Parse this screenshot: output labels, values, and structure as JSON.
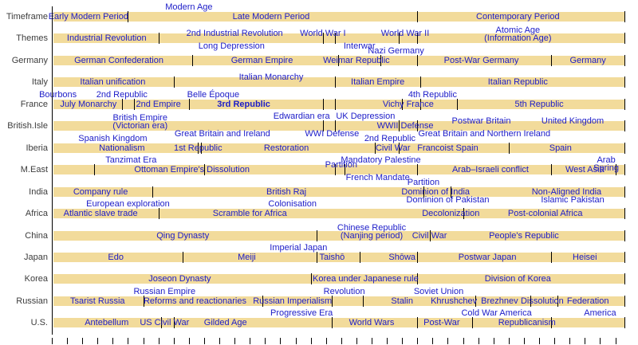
{
  "colors": {
    "bar_fill": "#f2db9b",
    "period_text": "#1c1cc8",
    "row_label_text": "#3c3c3c",
    "tick": "#000000",
    "background": "#ffffff"
  },
  "chart_data": {
    "type": "timeline",
    "title": "",
    "x_axis": {
      "min": 1825,
      "max": 2013,
      "major_tick_years": [
        1825,
        1850,
        1875,
        1900,
        1925,
        1950,
        1975,
        2000
      ],
      "minor_tick_step": 5
    },
    "rows": [
      {
        "label": "Timeframe",
        "ticks": [
          1850,
          1945,
          2013
        ],
        "periods": [
          {
            "text": "Early Modern Period",
            "year": 1837,
            "pos": "in"
          },
          {
            "text": "Modern Age",
            "year": 1870,
            "pos": "above"
          },
          {
            "text": "Late Modern Period",
            "year": 1897,
            "pos": "in"
          },
          {
            "text": "Contemporary Period",
            "year": 1978,
            "pos": "in"
          }
        ]
      },
      {
        "label": "Themes",
        "ticks": [
          1860,
          1914,
          1918,
          1939,
          1945,
          2013
        ],
        "periods": [
          {
            "text": "Industrial Revolution",
            "year": 1843,
            "pos": "in"
          },
          {
            "text": "2nd Industrial Revolution",
            "year": 1885,
            "pos": "top"
          },
          {
            "text": "Long Depression",
            "year": 1884,
            "pos": "below"
          },
          {
            "text": "World War I",
            "year": 1914,
            "pos": "top"
          },
          {
            "text": "Interwar",
            "year": 1926,
            "pos": "below"
          },
          {
            "text": "World War II",
            "year": 1941,
            "pos": "top"
          },
          {
            "text": "Atomic Age\n(Information Age)",
            "year": 1978,
            "pos": "top2"
          }
        ]
      },
      {
        "label": "Germany",
        "ticks": [
          1871,
          1919,
          1933,
          1945,
          1989,
          2013
        ],
        "periods": [
          {
            "text": "German Confederation",
            "year": 1847,
            "pos": "in"
          },
          {
            "text": "German Empire",
            "year": 1894,
            "pos": "in"
          },
          {
            "text": "Nazi Germany",
            "year": 1938,
            "pos": "above"
          },
          {
            "text": "Weimar Republic",
            "year": 1925,
            "pos": "in"
          },
          {
            "text": "Post-War Germany",
            "year": 1966,
            "pos": "in"
          },
          {
            "text": "Germany",
            "year": 2001,
            "pos": "in"
          }
        ]
      },
      {
        "label": "Italy",
        "ticks": [
          1865,
          1918,
          1946,
          2013
        ],
        "periods": [
          {
            "text": "Italian unification",
            "year": 1845,
            "pos": "in"
          },
          {
            "text": "Italian Monarchy",
            "year": 1897,
            "pos": "top"
          },
          {
            "text": "Italian Empire",
            "year": 1932,
            "pos": "in"
          },
          {
            "text": "Italian Republic",
            "year": 1978,
            "pos": "in"
          }
        ]
      },
      {
        "label": "France",
        "ticks": [
          1848,
          1852,
          1870,
          1914,
          1918,
          1940,
          1946,
          1958,
          2013
        ],
        "periods": [
          {
            "text": "Bourbons",
            "year": 1827,
            "pos": "above"
          },
          {
            "text": "July Monarchy",
            "year": 1837,
            "pos": "in"
          },
          {
            "text": "2nd Republic",
            "year": 1848,
            "pos": "above"
          },
          {
            "text": "2nd Empire",
            "year": 1860,
            "pos": "in"
          },
          {
            "text": "Belle Époque",
            "year": 1878,
            "pos": "above"
          },
          {
            "text": "3rd Republic",
            "year": 1888,
            "pos": "in",
            "bold": true
          },
          {
            "text": "Vichy France",
            "year": 1942,
            "pos": "in"
          },
          {
            "text": "4th Republic",
            "year": 1950,
            "pos": "above"
          },
          {
            "text": "5th Republic",
            "year": 1985,
            "pos": "in"
          }
        ]
      },
      {
        "label": "British.Isle",
        "ticks": [
          1914,
          1918,
          1939,
          1945,
          2013
        ],
        "periods": [
          {
            "text": "British Empire\n(Victorian era)",
            "year": 1854,
            "pos": "top2"
          },
          {
            "text": "Great Britain and Ireland",
            "year": 1881,
            "pos": "below"
          },
          {
            "text": "Edwardian era",
            "year": 1907,
            "pos": "above"
          },
          {
            "text": "WWI Defense",
            "year": 1917,
            "pos": "below"
          },
          {
            "text": "UK Depression",
            "year": 1928,
            "pos": "above"
          },
          {
            "text": "WWII Defense",
            "year": 1941,
            "pos": "in"
          },
          {
            "text": "Postwar Britain",
            "year": 1966,
            "pos": "top"
          },
          {
            "text": "Great Britain and Northern Ireland",
            "year": 1967,
            "pos": "below"
          },
          {
            "text": "United Kingdom",
            "year": 1996,
            "pos": "top"
          }
        ]
      },
      {
        "label": "Iberia",
        "ticks": [
          1873,
          1874,
          1931,
          1939,
          1975,
          2013
        ],
        "periods": [
          {
            "text": "Spanish Kingdom",
            "year": 1845,
            "pos": "above"
          },
          {
            "text": "Nationalism",
            "year": 1848,
            "pos": "in"
          },
          {
            "text": "1st Republic",
            "year": 1873,
            "pos": "in"
          },
          {
            "text": "Restoration",
            "year": 1902,
            "pos": "in"
          },
          {
            "text": "2nd Republic",
            "year": 1936,
            "pos": "above"
          },
          {
            "text": "Civil War",
            "year": 1937,
            "pos": "in"
          },
          {
            "text": "Francoist Spain",
            "year": 1955,
            "pos": "in"
          },
          {
            "text": "Spain",
            "year": 1992,
            "pos": "in"
          }
        ]
      },
      {
        "label": "M.East",
        "ticks": [
          1839,
          1875,
          1918,
          1921,
          1945,
          1989,
          2010,
          2013
        ],
        "periods": [
          {
            "text": "Tanzimat Era",
            "year": 1851,
            "pos": "above"
          },
          {
            "text": "Ottoman Empire's Dissolution",
            "year": 1871,
            "pos": "in"
          },
          {
            "text": "Partition",
            "year": 1920,
            "pos": "top"
          },
          {
            "text": "Mandatory Palestine",
            "year": 1933,
            "pos": "above"
          },
          {
            "text": "French Mandate",
            "year": 1932,
            "pos": "below"
          },
          {
            "text": "Arab–Israeli conflict",
            "year": 1969,
            "pos": "in"
          },
          {
            "text": "West Asia",
            "year": 2000,
            "pos": "in"
          },
          {
            "text": "Arab Spring",
            "year": 2007,
            "pos": "above"
          }
        ]
      },
      {
        "label": "India",
        "ticks": [
          1858,
          1947,
          1956,
          2013
        ],
        "periods": [
          {
            "text": "Company rule",
            "year": 1841,
            "pos": "in"
          },
          {
            "text": "British Raj",
            "year": 1902,
            "pos": "in"
          },
          {
            "text": "Partition",
            "year": 1947,
            "pos": "above"
          },
          {
            "text": "Dominion of India",
            "year": 1951,
            "pos": "in"
          },
          {
            "text": "Dominion of Pakistan",
            "year": 1955,
            "pos": "below"
          },
          {
            "text": "Non-Aligned India",
            "year": 1994,
            "pos": "in"
          },
          {
            "text": "Islamic Pakistan",
            "year": 1996,
            "pos": "below"
          }
        ]
      },
      {
        "label": "Africa",
        "ticks": [
          1860,
          1960,
          2013
        ],
        "periods": [
          {
            "text": "European exploration",
            "year": 1850,
            "pos": "above"
          },
          {
            "text": "Atlantic slave trade",
            "year": 1841,
            "pos": "in"
          },
          {
            "text": "Scramble for Africa",
            "year": 1890,
            "pos": "in"
          },
          {
            "text": "Colonisation",
            "year": 1904,
            "pos": "above"
          },
          {
            "text": "Decolonization",
            "year": 1956,
            "pos": "in"
          },
          {
            "text": "Post-colonial Africa",
            "year": 1987,
            "pos": "in"
          }
        ]
      },
      {
        "label": "China",
        "ticks": [
          1912,
          1949,
          2013
        ],
        "periods": [
          {
            "text": "Qing Dynasty",
            "year": 1868,
            "pos": "in"
          },
          {
            "text": "Chinese Republic\n(Nanjing period)",
            "year": 1930,
            "pos": "top2"
          },
          {
            "text": "Civil War",
            "year": 1949,
            "pos": "in"
          },
          {
            "text": "People's Republic",
            "year": 1980,
            "pos": "in"
          }
        ]
      },
      {
        "label": "Japan",
        "ticks": [
          1868,
          1912,
          1926,
          1945,
          1989,
          2013
        ],
        "periods": [
          {
            "text": "Edo",
            "year": 1846,
            "pos": "in"
          },
          {
            "text": "Meiji",
            "year": 1889,
            "pos": "in"
          },
          {
            "text": "Imperial Japan",
            "year": 1906,
            "pos": "above"
          },
          {
            "text": "Taishō",
            "year": 1917,
            "pos": "in"
          },
          {
            "text": "Shōwa",
            "year": 1940,
            "pos": "in"
          },
          {
            "text": "Postwar Japan",
            "year": 1968,
            "pos": "in"
          },
          {
            "text": "Heisei",
            "year": 2000,
            "pos": "in"
          }
        ]
      },
      {
        "label": "Korea",
        "ticks": [
          1910,
          1945,
          2013
        ],
        "periods": [
          {
            "text": "Joseon Dynasty",
            "year": 1867,
            "pos": "in"
          },
          {
            "text": "Korea under Japanese rule",
            "year": 1928,
            "pos": "in"
          },
          {
            "text": "Division of Korea",
            "year": 1978,
            "pos": "in"
          }
        ]
      },
      {
        "label": "Russian",
        "ticks": [
          1855,
          1894,
          1917,
          1927,
          1964,
          1982,
          1991,
          2013
        ],
        "periods": [
          {
            "text": "Tsarist Russia",
            "year": 1840,
            "pos": "in"
          },
          {
            "text": "Russian Empire",
            "year": 1862,
            "pos": "above"
          },
          {
            "text": "Reforms and reactionaries",
            "year": 1872,
            "pos": "in"
          },
          {
            "text": "Russian Imperialism",
            "year": 1904,
            "pos": "in"
          },
          {
            "text": "Revolution",
            "year": 1921,
            "pos": "above"
          },
          {
            "text": "Stalin",
            "year": 1940,
            "pos": "in"
          },
          {
            "text": "Soviet Union",
            "year": 1952,
            "pos": "above"
          },
          {
            "text": "Khrushchev",
            "year": 1957,
            "pos": "in"
          },
          {
            "text": "Brezhnev",
            "year": 1972,
            "pos": "in"
          },
          {
            "text": "Dissolution",
            "year": 1986,
            "pos": "in"
          },
          {
            "text": "Federation",
            "year": 2001,
            "pos": "in"
          }
        ]
      },
      {
        "label": "U.S.",
        "ticks": [
          1861,
          1865,
          1917,
          1945,
          1963,
          1989,
          2013
        ],
        "periods": [
          {
            "text": "Antebellum",
            "year": 1843,
            "pos": "in"
          },
          {
            "text": "US Civil War",
            "year": 1862,
            "pos": "in"
          },
          {
            "text": "Gilded Age",
            "year": 1882,
            "pos": "in"
          },
          {
            "text": "Progressive Era",
            "year": 1907,
            "pos": "above"
          },
          {
            "text": "World Wars",
            "year": 1930,
            "pos": "in"
          },
          {
            "text": "Post-War",
            "year": 1953,
            "pos": "in"
          },
          {
            "text": "Cold War America",
            "year": 1971,
            "pos": "above"
          },
          {
            "text": "Republicanism",
            "year": 1981,
            "pos": "in"
          },
          {
            "text": "America",
            "year": 2005,
            "pos": "above"
          }
        ]
      }
    ]
  }
}
